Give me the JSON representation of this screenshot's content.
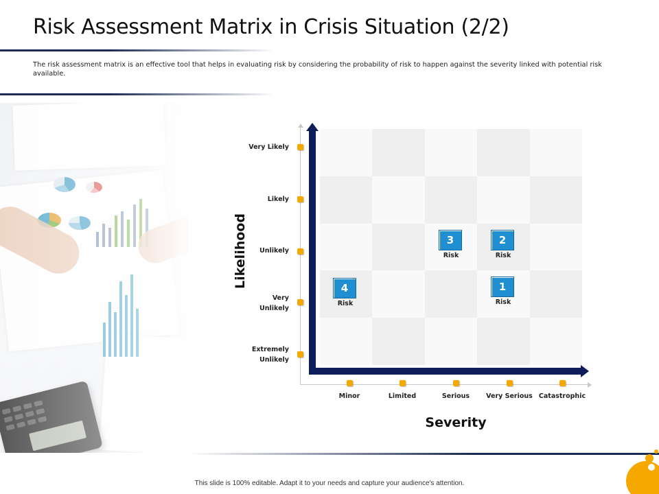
{
  "title": "Risk Assessment Matrix in Crisis Situation (2/2)",
  "description": "The risk assessment matrix is an effective tool that helps in evaluating risk by considering the probability of risk to happen against the severity linked with potential risk available.",
  "matrix": {
    "y_axis_title": "Likelihood",
    "x_axis_title": "Severity",
    "likelihood_levels": [
      "Very Likely",
      "Likely",
      "Unlikely",
      "Very Unlikely",
      "Extremely Unlikely"
    ],
    "severity_levels": [
      "Minor",
      "Limited",
      "Serious",
      "Very Serious",
      "Catastrophic"
    ],
    "risks": [
      {
        "number": "1",
        "label": "Risk",
        "likelihood": "Very Unlikely",
        "severity": "Very Serious"
      },
      {
        "number": "2",
        "label": "Risk",
        "likelihood": "Unlikely",
        "severity": "Very Serious"
      },
      {
        "number": "3",
        "label": "Risk",
        "likelihood": "Unlikely",
        "severity": "Serious"
      },
      {
        "number": "4",
        "label": "Risk",
        "likelihood": "Very Unlikely",
        "severity": "Minor"
      }
    ],
    "colors": {
      "axis": "#0e1e5b",
      "marker": "#f5a800",
      "risk_box": "#1f8fd1"
    }
  },
  "footer": "This slide is 100% editable. Adapt it to your needs and capture your audience's attention."
}
